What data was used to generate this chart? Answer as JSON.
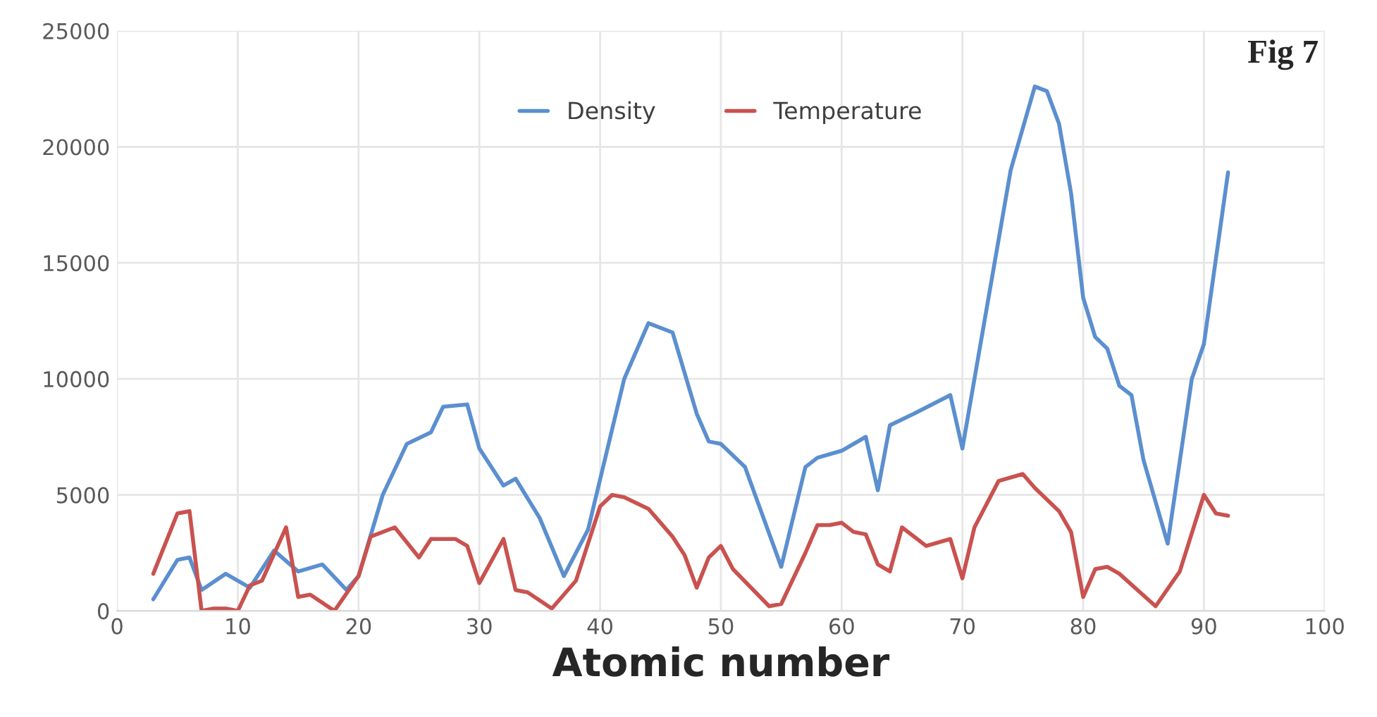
{
  "chart_data": {
    "type": "line",
    "xlabel": "Atomic number",
    "annotations": [
      "Fig 7"
    ],
    "xlim": [
      0,
      100
    ],
    "xticks": [
      0,
      10,
      20,
      30,
      40,
      50,
      60,
      70,
      80,
      90,
      100
    ],
    "ylim": [
      0,
      25000
    ],
    "yticks": [
      0,
      5000,
      10000,
      15000,
      20000,
      25000
    ],
    "grid": true,
    "legend": "top",
    "line_style": "solid",
    "marker": "none",
    "series": [
      {
        "name": "Density",
        "color": "#5b8fcf",
        "x": [
          3,
          5,
          6,
          7,
          9,
          11,
          13,
          15,
          17,
          19,
          20,
          22,
          24,
          26,
          27,
          29,
          30,
          32,
          33,
          35,
          37,
          39,
          42,
          44,
          46,
          48,
          49,
          50,
          52,
          55,
          57,
          58,
          60,
          62,
          63,
          64,
          66,
          69,
          70,
          72,
          74,
          76,
          77,
          78,
          79,
          80,
          81,
          82,
          83,
          84,
          85,
          87,
          89,
          90,
          92
        ],
        "values": [
          500,
          2200,
          2300,
          900,
          1600,
          1000,
          2600,
          1700,
          2000,
          900,
          1500,
          5000,
          7200,
          7700,
          8800,
          8900,
          7000,
          5400,
          5700,
          4000,
          1500,
          3500,
          10000,
          12400,
          12000,
          8500,
          7300,
          7200,
          6200,
          1900,
          6200,
          6600,
          6900,
          7500,
          5200,
          8000,
          8500,
          9300,
          7000,
          13000,
          19000,
          22600,
          22400,
          21000,
          18000,
          13500,
          11800,
          11300,
          9700,
          9300,
          6500,
          2900,
          10000,
          11500,
          18900
        ]
      },
      {
        "name": "Temperature",
        "color": "#c9524f",
        "x": [
          3,
          5,
          6,
          7,
          8,
          9,
          10,
          11,
          12,
          14,
          15,
          16,
          18,
          20,
          21,
          23,
          25,
          26,
          28,
          29,
          30,
          32,
          33,
          34,
          36,
          38,
          40,
          41,
          42,
          44,
          46,
          47,
          48,
          49,
          50,
          51,
          54,
          55,
          57,
          58,
          59,
          60,
          61,
          62,
          63,
          64,
          65,
          67,
          69,
          70,
          71,
          73,
          75,
          76,
          78,
          79,
          80,
          81,
          82,
          83,
          86,
          88,
          90,
          91,
          92
        ],
        "values": [
          1600,
          4200,
          4300,
          0,
          100,
          100,
          0,
          1100,
          1300,
          3600,
          600,
          700,
          0,
          1500,
          3200,
          3600,
          2300,
          3100,
          3100,
          2800,
          1200,
          3100,
          900,
          800,
          100,
          1300,
          4500,
          5000,
          4900,
          4400,
          3200,
          2400,
          1000,
          2300,
          2800,
          1800,
          200,
          300,
          2500,
          3700,
          3700,
          3800,
          3400,
          3300,
          2000,
          1700,
          3600,
          2800,
          3100,
          1400,
          3600,
          5600,
          5900,
          5300,
          4300,
          3400,
          600,
          1800,
          1900,
          1600,
          200,
          1700,
          5000,
          4200,
          4100
        ]
      }
    ]
  }
}
